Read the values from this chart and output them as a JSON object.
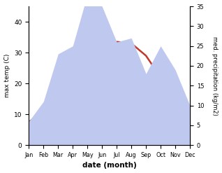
{
  "months": [
    "Jan",
    "Feb",
    "Mar",
    "Apr",
    "May",
    "Jun",
    "Jul",
    "Aug",
    "Sep",
    "Oct",
    "Nov",
    "Dec"
  ],
  "temp": [
    7.5,
    11,
    17,
    22,
    27,
    31.5,
    33.5,
    33,
    29,
    22,
    13,
    8
  ],
  "precip": [
    6,
    11,
    23,
    25,
    38,
    35,
    26,
    27,
    18,
    25,
    19,
    10
  ],
  "temp_color": "#c0392b",
  "precip_fill_color": "#bfc8ef",
  "ylabel_left": "max temp (C)",
  "ylabel_right": "med. precipitation (kg/m2)",
  "xlabel": "date (month)",
  "ylim_left": [
    0,
    45
  ],
  "ylim_right": [
    0,
    35
  ],
  "yticks_left": [
    0,
    10,
    20,
    30,
    40
  ],
  "yticks_right": [
    0,
    5,
    10,
    15,
    20,
    25,
    30,
    35
  ],
  "temp_lw": 1.8,
  "bg_color": "#ffffff"
}
